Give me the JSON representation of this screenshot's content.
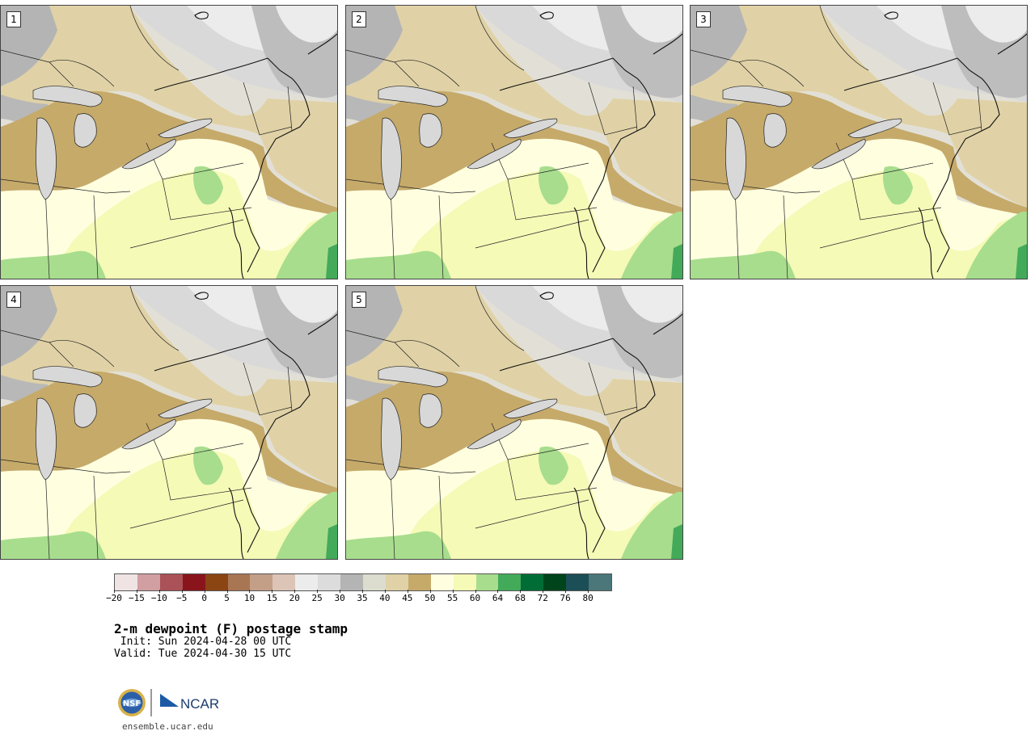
{
  "product": {
    "title": "2-m dewpoint (F) postage stamp",
    "init": " Init: Sun 2024-04-28 00 UTC",
    "valid": "Valid: Tue 2024-04-30 15 UTC"
  },
  "panels": [
    {
      "label": "1"
    },
    {
      "label": "2"
    },
    {
      "label": "3"
    },
    {
      "label": "4"
    },
    {
      "label": "5"
    }
  ],
  "colorbar": {
    "colors": [
      "#efe3e3",
      "#d19ea1",
      "#aa5257",
      "#8a141c",
      "#8a4513",
      "#a97654",
      "#c39f88",
      "#dcc4b6",
      "#ececec",
      "#dcdcdc",
      "#b4b4b4",
      "#dcdccf",
      "#e0d2a6",
      "#c6aa6a",
      "#ffffe0",
      "#f5fab7",
      "#a8dd8e",
      "#43aa5a",
      "#016d36",
      "#00441b",
      "#1b4e56",
      "#4b777a"
    ],
    "tick_labels": [
      "−20",
      "−15",
      "−10",
      "−5",
      "0",
      "5",
      "10",
      "15",
      "20",
      "25",
      "30",
      "35",
      "40",
      "45",
      "50",
      "55",
      "60",
      "64",
      "68",
      "72",
      "76",
      "80"
    ]
  },
  "footer": {
    "logo_text": "NCAR",
    "nsf_text": "NSF",
    "site": "ensemble.ucar.edu"
  }
}
